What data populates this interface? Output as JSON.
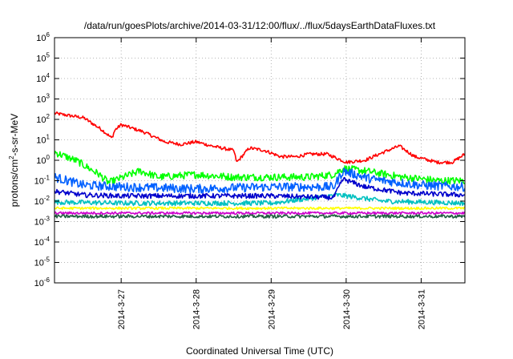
{
  "chart_data": {
    "type": "line",
    "title": "/data/run/goesPlots/archive/2014-03-31/12:00/flux/../flux/5daysEarthDataFluxes.txt",
    "xlabel": "Coordinated Universal Time (UTC)",
    "ylabel": {
      "pre": "protons/cm",
      "sup": "2",
      "post": "-s-sr-MeV"
    },
    "xlim": [
      "2014-03-26 02:40",
      "2014-03-31 14:00"
    ],
    "x_ticks": [
      "2014-3-27",
      "2014-3-28",
      "2014-3-29",
      "2014-3-30",
      "2014-3-31"
    ],
    "x_tick_dates": [
      "2014-03-27",
      "2014-03-28",
      "2014-03-29",
      "2014-03-30",
      "2014-03-31"
    ],
    "y_scale": "log",
    "ylim": [
      1e-06,
      1000000.0
    ],
    "y_ticks": [
      {
        "base": "10",
        "exp": "-6"
      },
      {
        "base": "10",
        "exp": "-5"
      },
      {
        "base": "10",
        "exp": "-4"
      },
      {
        "base": "10",
        "exp": "-3"
      },
      {
        "base": "10",
        "exp": "-2"
      },
      {
        "base": "10",
        "exp": "-1"
      },
      {
        "base": "10",
        "exp": "0"
      },
      {
        "base": "10",
        "exp": "1"
      },
      {
        "base": "10",
        "exp": "2"
      },
      {
        "base": "10",
        "exp": "3"
      },
      {
        "base": "10",
        "exp": "4"
      },
      {
        "base": "10",
        "exp": "5"
      },
      {
        "base": "10",
        "exp": "6"
      }
    ],
    "grid": true,
    "series": [
      {
        "color": "#ff0000",
        "noise": 0.08,
        "x": [
          "2014-03-26 02:40",
          "2014-03-26 12:00",
          "2014-03-26 18:00",
          "2014-03-26 21:00",
          "2014-03-26 22:00",
          "2014-03-27 00:00",
          "2014-03-27 07:00",
          "2014-03-27 14:00",
          "2014-03-27 19:00",
          "2014-03-28 00:00",
          "2014-03-28 05:00",
          "2014-03-28 12:00",
          "2014-03-28 13:00",
          "2014-03-28 17:00",
          "2014-03-28 22:00",
          "2014-03-29 03:00",
          "2014-03-29 08:00",
          "2014-03-29 12:00",
          "2014-03-29 18:00",
          "2014-03-30 00:00",
          "2014-03-30 06:00",
          "2014-03-30 12:00",
          "2014-03-30 17:00",
          "2014-03-30 22:00",
          "2014-03-31 05:00",
          "2014-03-31 10:00",
          "2014-03-31 14:00"
        ],
        "y": [
          200,
          120,
          30,
          12,
          30,
          55,
          25,
          8,
          6,
          8,
          5,
          3,
          0.8,
          4,
          3,
          1.5,
          1.5,
          2,
          2,
          0.8,
          1.0,
          2.5,
          5,
          1.5,
          0.8,
          0.8,
          2
        ]
      },
      {
        "color": "#00ff00",
        "noise": 0.18,
        "x": [
          "2014-03-26 02:40",
          "2014-03-26 10:00",
          "2014-03-26 17:00",
          "2014-03-26 20:00",
          "2014-03-27 06:00",
          "2014-03-27 12:00",
          "2014-03-28 00:00",
          "2014-03-28 12:00",
          "2014-03-29 00:00",
          "2014-03-29 12:00",
          "2014-03-29 20:00",
          "2014-03-29 23:00",
          "2014-03-30 06:00",
          "2014-03-30 18:00",
          "2014-03-31 06:00",
          "2014-03-31 14:00"
        ],
        "y": [
          2.5,
          0.9,
          0.2,
          0.08,
          0.3,
          0.15,
          0.2,
          0.15,
          0.15,
          0.15,
          0.2,
          0.4,
          0.3,
          0.15,
          0.1,
          0.1
        ]
      },
      {
        "color": "#00c0c0",
        "noise": 0.12,
        "x": [
          "2014-03-26 02:40",
          "2014-03-27 00:00",
          "2014-03-28 00:00",
          "2014-03-29 00:00",
          "2014-03-29 21:00",
          "2014-03-30 00:00",
          "2014-03-30 12:00",
          "2014-03-31 14:00"
        ],
        "y": [
          0.009,
          0.008,
          0.008,
          0.008,
          0.02,
          0.018,
          0.01,
          0.008
        ]
      },
      {
        "color": "#0060ff",
        "noise": 0.22,
        "x": [
          "2014-03-26 02:40",
          "2014-03-26 12:00",
          "2014-03-27 00:00",
          "2014-03-28 00:00",
          "2014-03-29 00:00",
          "2014-03-29 20:00",
          "2014-03-29 23:00",
          "2014-03-30 08:00",
          "2014-03-31 00:00",
          "2014-03-31 14:00"
        ],
        "y": [
          0.15,
          0.06,
          0.05,
          0.04,
          0.05,
          0.05,
          0.3,
          0.12,
          0.06,
          0.05
        ]
      },
      {
        "color": "#0000cc",
        "noise": 0.12,
        "x": [
          "2014-03-26 02:40",
          "2014-03-26 12:00",
          "2014-03-27 00:00",
          "2014-03-28 00:00",
          "2014-03-29 00:00",
          "2014-03-29 20:00",
          "2014-03-29 23:00",
          "2014-03-30 06:00",
          "2014-03-30 18:00",
          "2014-03-31 14:00"
        ],
        "y": [
          0.03,
          0.02,
          0.018,
          0.018,
          0.018,
          0.015,
          0.12,
          0.05,
          0.025,
          0.02
        ]
      },
      {
        "color": "#ffff00",
        "noise": 0.06,
        "x": [
          "2014-03-26 02:40",
          "2014-03-31 14:00"
        ],
        "y": [
          0.0045,
          0.0045
        ]
      },
      {
        "color": "#cc00cc",
        "noise": 0.06,
        "x": [
          "2014-03-26 02:40",
          "2014-03-31 14:00"
        ],
        "y": [
          0.0026,
          0.0026
        ]
      },
      {
        "color": "#206040",
        "noise": 0.08,
        "x": [
          "2014-03-26 02:40",
          "2014-03-31 14:00"
        ],
        "y": [
          0.0018,
          0.0018
        ]
      }
    ]
  }
}
